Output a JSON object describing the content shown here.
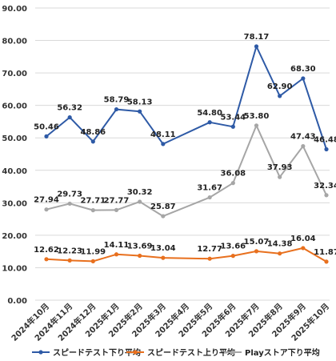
{
  "chart_data": {
    "type": "line",
    "categories": [
      "2024年10月",
      "2024年11月",
      "2024年12月",
      "2025年1月",
      "2025年2月",
      "2025年3月",
      "2025年4月",
      "2025年5月",
      "2025年6月",
      "2025年7月",
      "2025年8月",
      "2025年9月",
      "2025年10月"
    ],
    "ylim": [
      0,
      90
    ],
    "yticks": [
      "0.00",
      "10.00",
      "20.00",
      "30.00",
      "40.00",
      "50.00",
      "60.00",
      "70.00",
      "80.00",
      "90.00"
    ],
    "grid": true,
    "legend_position": "bottom",
    "series": [
      {
        "name": "スピードテスト下り平均",
        "color": "#2e5aa6",
        "values": [
          50.46,
          56.32,
          48.86,
          58.79,
          58.13,
          48.11,
          null,
          54.8,
          53.44,
          78.17,
          62.9,
          68.3,
          46.48
        ],
        "labels": [
          "50.46",
          "56.32",
          "48.86",
          "58.79",
          "58.13",
          "48.11",
          null,
          "54.80",
          "53.44",
          "78.17",
          "62.90",
          "68.30",
          "46.48"
        ]
      },
      {
        "name": "スピードテスト上り平均",
        "color": "#e8701e",
        "values": [
          12.62,
          12.23,
          11.99,
          14.11,
          13.69,
          13.04,
          null,
          12.77,
          13.66,
          15.07,
          14.38,
          16.04,
          11.87
        ],
        "labels": [
          "12.62",
          "12.23",
          "11.99",
          "14.11",
          "13.69",
          "13.04",
          null,
          "12.77",
          "13.66",
          "15.07",
          "14.38",
          "16.04",
          "11.87"
        ]
      },
      {
        "name": "Playストア下り平均",
        "color": "#a6a6a6",
        "values": [
          27.94,
          29.73,
          27.71,
          27.77,
          30.32,
          25.87,
          null,
          31.67,
          36.08,
          53.8,
          37.93,
          47.43,
          32.34
        ],
        "labels": [
          "27.94",
          "29.73",
          "27.71",
          "27.77",
          "30.32",
          "25.87",
          null,
          "31.67",
          "36.08",
          "53.80",
          "37.93",
          "47.43",
          "32.34"
        ]
      }
    ]
  }
}
